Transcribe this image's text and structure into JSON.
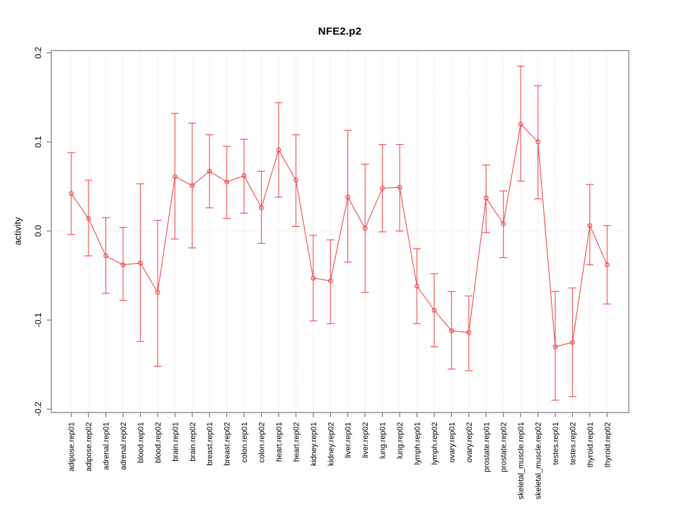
{
  "chart_data": {
    "type": "line",
    "title": "NFE2.p2",
    "xlabel": "",
    "ylabel": "activity",
    "ylim": [
      -0.2,
      0.2
    ],
    "ytick_labels": [
      "0.2",
      "0.1",
      "0.0",
      "-0.1",
      "-0.2"
    ],
    "ytick_values": [
      0.2,
      0.1,
      0.0,
      -0.1,
      -0.2
    ],
    "grid": {
      "vertical_per_category": true,
      "horizontal_zero_line": true,
      "style": "dotted"
    },
    "legend": null,
    "colors": {
      "series": "#ef4b4b",
      "grid": "#c9c9c9",
      "box": "#8a8a8a",
      "tick": "#787878",
      "text": "#000000"
    },
    "categories": [
      "adipose.rep01",
      "adipose.rep02",
      "adrenal.rep01",
      "adrenal.rep02",
      "blood.rep01",
      "blood.rep02",
      "brain.rep01",
      "brain.rep02",
      "breast.rep01",
      "breast.rep02",
      "colon.rep01",
      "colon.rep02",
      "heart.rep01",
      "heart.rep02",
      "kidney.rep01",
      "kidney.rep02",
      "liver.rep01",
      "liver.rep02",
      "lung.rep01",
      "lung.rep02",
      "lymph.rep01",
      "lymph.rep02",
      "ovary.rep01",
      "ovary.rep02",
      "prostate.rep01",
      "prostate.rep02",
      "skeletal_muscle.rep01",
      "skeletal_muscle.rep02",
      "testes.rep01",
      "testes.rep02",
      "thyroid.rep01",
      "thyroid.rep02"
    ],
    "series": [
      {
        "name": "activity",
        "marker": "open-circle",
        "error_bars": true,
        "values": [
          0.042,
          0.014,
          -0.028,
          -0.038,
          -0.036,
          -0.069,
          0.061,
          0.051,
          0.067,
          0.055,
          0.062,
          0.026,
          0.091,
          0.057,
          -0.053,
          -0.056,
          0.038,
          0.003,
          0.048,
          0.049,
          -0.062,
          -0.089,
          -0.112,
          -0.114,
          0.037,
          0.008,
          0.12,
          0.1,
          -0.13,
          -0.125,
          0.006,
          -0.038
        ],
        "err_low": [
          -0.004,
          -0.028,
          -0.07,
          -0.078,
          -0.124,
          -0.152,
          -0.009,
          -0.019,
          0.026,
          0.014,
          0.02,
          -0.014,
          0.038,
          0.005,
          -0.101,
          -0.104,
          -0.035,
          -0.069,
          -0.001,
          0.0,
          -0.104,
          -0.13,
          -0.155,
          -0.157,
          -0.002,
          -0.03,
          0.056,
          0.036,
          -0.19,
          -0.186,
          -0.038,
          -0.082
        ],
        "err_high": [
          0.088,
          0.057,
          0.015,
          0.004,
          0.053,
          0.012,
          0.132,
          0.121,
          0.108,
          0.095,
          0.103,
          0.067,
          0.144,
          0.108,
          -0.005,
          -0.01,
          0.113,
          0.075,
          0.097,
          0.097,
          -0.02,
          -0.048,
          -0.068,
          -0.073,
          0.074,
          0.045,
          0.185,
          0.163,
          -0.068,
          -0.064,
          0.052,
          0.006
        ]
      }
    ]
  }
}
